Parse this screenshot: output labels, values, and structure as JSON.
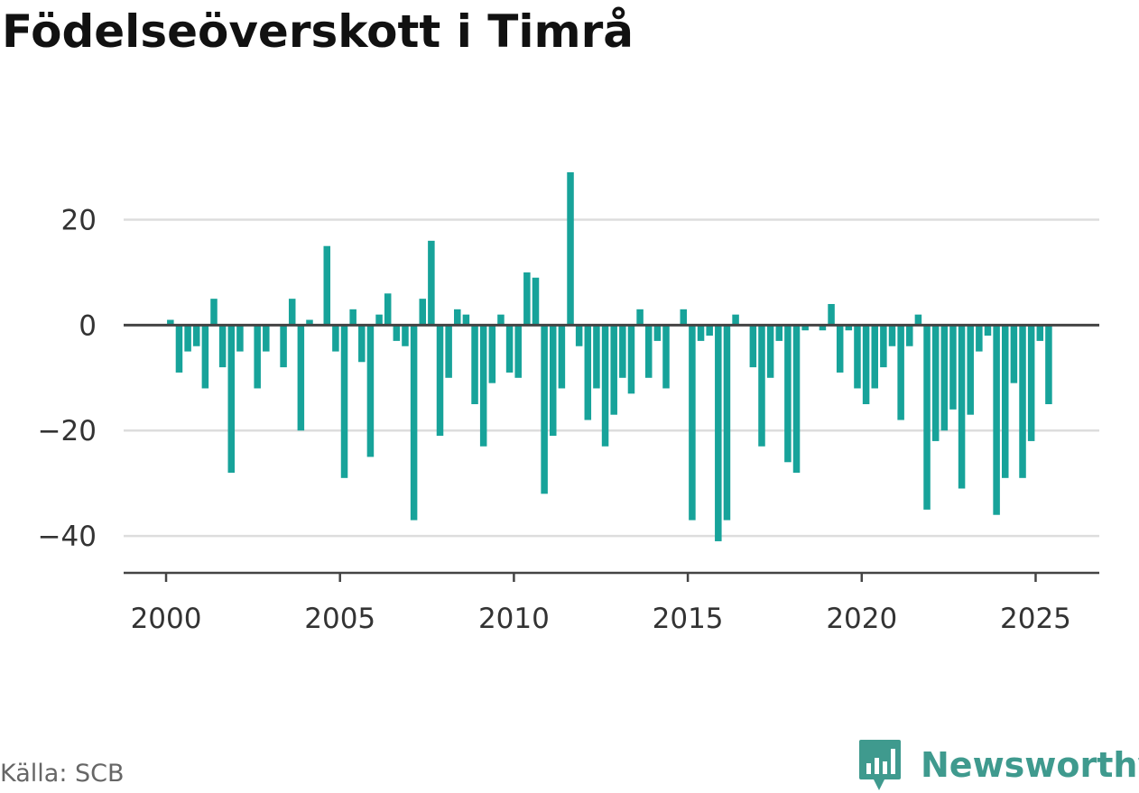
{
  "title": "Födelseöverskott i Timrå",
  "source": "Källa: SCB",
  "brand": "Newsworthy",
  "colors": {
    "bar": "#17a39a",
    "zero_line": "#444444",
    "grid": "#dddddd",
    "axis": "#444444",
    "brand": "#3f9a8e"
  },
  "chart_data": {
    "type": "bar",
    "title": "Födelseöverskott i Timrå",
    "xlabel": "",
    "ylabel": "",
    "x_ticks": [
      2000,
      2005,
      2010,
      2015,
      2020,
      2025
    ],
    "y_ticks": [
      20,
      0,
      -20,
      -40
    ],
    "y_tick_labels": [
      "20",
      "0",
      "−20",
      "−40"
    ],
    "xlim": [
      1998.78,
      2026.83
    ],
    "ylim": [
      -47,
      36
    ],
    "grid": true,
    "frequency": "quarterly",
    "start": "2000 Q1",
    "values": [
      1,
      -9,
      -5,
      -4,
      -12,
      5,
      -8,
      -28,
      -5,
      0,
      -12,
      -5,
      0,
      -8,
      5,
      -20,
      1,
      0,
      15,
      -5,
      -29,
      3,
      -7,
      -25,
      2,
      6,
      -3,
      -4,
      -37,
      5,
      16,
      -21,
      -10,
      3,
      2,
      -15,
      -23,
      -11,
      2,
      -9,
      -10,
      10,
      9,
      -32,
      -21,
      -12,
      29,
      -4,
      -18,
      -12,
      -23,
      -17,
      -10,
      -13,
      3,
      -10,
      -3,
      -12,
      0,
      3,
      -37,
      -3,
      -2,
      -41,
      -37,
      2,
      0,
      -8,
      -23,
      -10,
      -3,
      -26,
      -28,
      -1,
      0,
      -1,
      4,
      -9,
      -1,
      -12,
      -15,
      -12,
      -8,
      -4,
      -18,
      -4,
      2,
      -35,
      -22,
      -20,
      -16,
      -31,
      -17,
      -5,
      -2,
      -36,
      -29,
      -11,
      -29,
      -22,
      -3,
      -15
    ]
  }
}
